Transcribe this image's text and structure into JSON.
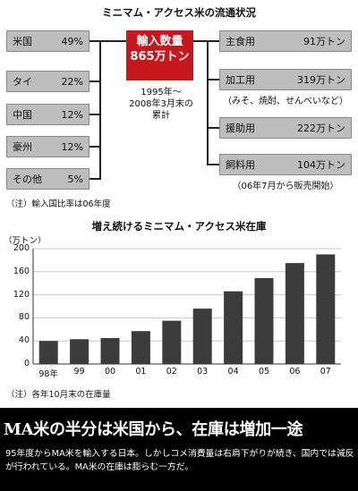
{
  "flow": {
    "title": "ミニマム・アクセス米の流通状況",
    "center_box": {
      "line1": "輸入数量",
      "line2": "865万トン"
    },
    "period": {
      "line1": "1995年～",
      "line2": "2008年3月末の",
      "line3": "累計"
    },
    "sources": [
      {
        "label": "米国",
        "value": "49%"
      },
      {
        "label": "タイ",
        "value": "22%"
      },
      {
        "label": "中国",
        "value": "12%"
      },
      {
        "label": "豪州",
        "value": "12%"
      },
      {
        "label": "その他",
        "value": "5%"
      }
    ],
    "uses": [
      {
        "label": "主食用",
        "value": "91万トン",
        "note": ""
      },
      {
        "label": "加工用",
        "value": "319万トン",
        "note": "（みそ、焼酎、せんべいなど）"
      },
      {
        "label": "援助用",
        "value": "222万トン",
        "note": ""
      },
      {
        "label": "飼料用",
        "value": "104万トン",
        "note": "（06年7月から販売開始）"
      }
    ],
    "footnote": "（注）輸入国比率は06年度"
  },
  "chart_data": {
    "type": "bar",
    "title": "増え続けるミニマム・アクセス米在庫",
    "ylabel": "（万トン）",
    "categories": [
      "98年",
      "99",
      "00",
      "01",
      "02",
      "03",
      "04",
      "05",
      "06",
      "07"
    ],
    "values": [
      40,
      43,
      45,
      57,
      75,
      96,
      126,
      149,
      175,
      190
    ],
    "ylim": [
      0,
      200
    ],
    "yticks": [
      0,
      40,
      80,
      120,
      160,
      200
    ],
    "grid": true,
    "colors": {
      "bar": "#3c3c3c",
      "grid": "#c8c8c8"
    },
    "footnote": "（注）各年10月末の在庫量"
  },
  "article": {
    "headline": "MA米の半分は米国から、在庫は増加一途",
    "body": "95年度からMA米を輸入する日本。しかしコメ消費量は右肩下がりが続き、国内では減反が行われている。MA米の在庫は膨らむ一方だ。"
  },
  "colors": {
    "red": "#c8161d",
    "gray_box": "#bdbdbd",
    "band": "#000000"
  }
}
